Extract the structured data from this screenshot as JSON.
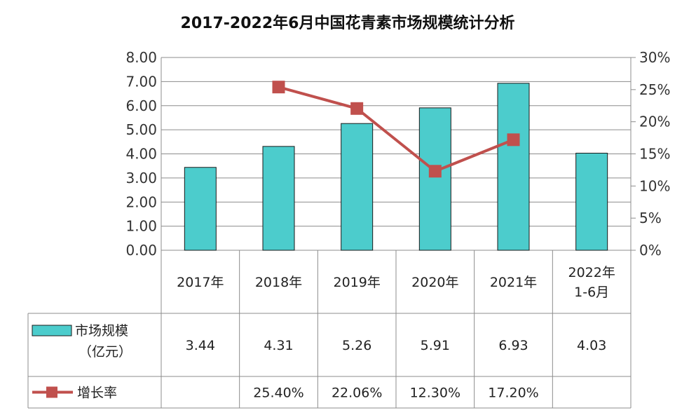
{
  "chart_data": {
    "type": "bar",
    "title": "2017-2022年6月中国花青素市场规模统计分析",
    "categories": [
      "2017年",
      "2018年",
      "2019年",
      "2020年",
      "2021年",
      "2022年\n1-6月"
    ],
    "series": [
      {
        "name": "市场规模\n（亿元）",
        "kind": "bar",
        "axis": "left",
        "values": [
          3.44,
          4.31,
          5.26,
          5.91,
          6.93,
          4.03
        ],
        "labels": [
          "3.44",
          "4.31",
          "5.26",
          "5.91",
          "6.93",
          "4.03"
        ],
        "color": "#4ccccc"
      },
      {
        "name": "增长率",
        "kind": "line",
        "axis": "right",
        "values": [
          null,
          25.4,
          22.06,
          12.3,
          17.2,
          null
        ],
        "labels": [
          "",
          "25.40%",
          "22.06%",
          "12.30%",
          "17.20%",
          ""
        ],
        "color": "#c0504d"
      }
    ],
    "y_left": {
      "range": [
        0,
        8
      ],
      "ticks": [
        "0.00",
        "1.00",
        "2.00",
        "3.00",
        "4.00",
        "5.00",
        "6.00",
        "7.00",
        "8.00"
      ]
    },
    "y_right": {
      "range": [
        0,
        30
      ],
      "ticks": [
        "0%",
        "5%",
        "10%",
        "15%",
        "20%",
        "25%",
        "30%"
      ]
    },
    "grid": true,
    "legend": "data-table"
  }
}
